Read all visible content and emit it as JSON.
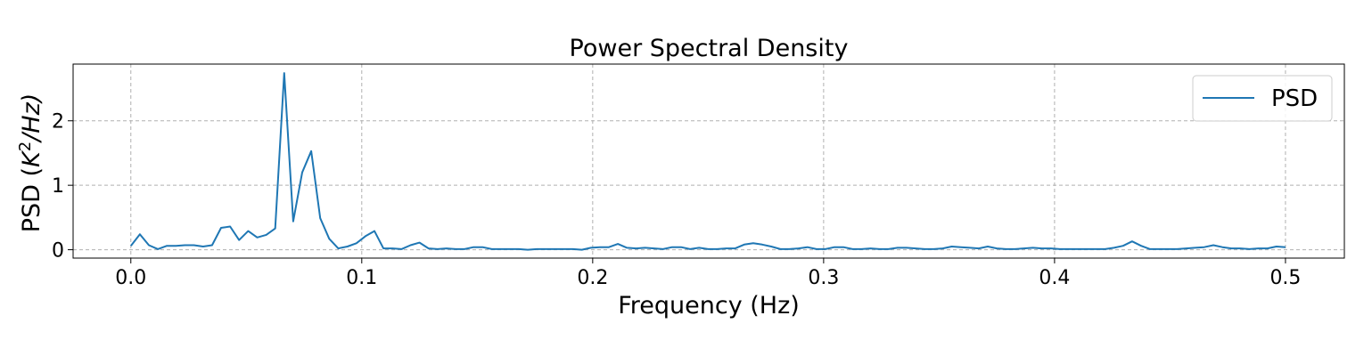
{
  "chart_data": {
    "type": "line",
    "title": "Power Spectral Density",
    "xlabel": "Frequency (Hz)",
    "ylabel": {
      "prefix": "PSD (",
      "base": "K",
      "sup": "2",
      "suffix": "/Hz)"
    },
    "xlim": [
      -0.025,
      0.5255
    ],
    "ylim": [
      -0.13,
      2.88
    ],
    "xticks": [
      0.0,
      0.1,
      0.2,
      0.3,
      0.4,
      0.5
    ],
    "xtick_labels": [
      "0.0",
      "0.1",
      "0.2",
      "0.3",
      "0.4",
      "0.5"
    ],
    "yticks": [
      0,
      1,
      2
    ],
    "ytick_labels": [
      "0",
      "1",
      "2"
    ],
    "grid": true,
    "legend_position": "top-right",
    "series": [
      {
        "name": "PSD",
        "color": "#1f77b4",
        "x": [
          0.0,
          0.0039,
          0.0078,
          0.0117,
          0.0156,
          0.0195,
          0.0234,
          0.0273,
          0.0313,
          0.0352,
          0.0391,
          0.043,
          0.0469,
          0.0508,
          0.0547,
          0.0586,
          0.0625,
          0.0664,
          0.0703,
          0.0742,
          0.0781,
          0.082,
          0.0859,
          0.0898,
          0.0938,
          0.0977,
          0.1016,
          0.1055,
          0.1094,
          0.1133,
          0.1172,
          0.1211,
          0.125,
          0.1289,
          0.1328,
          0.1367,
          0.1406,
          0.1445,
          0.1484,
          0.1523,
          0.1563,
          0.1602,
          0.1641,
          0.168,
          0.1719,
          0.1758,
          0.1797,
          0.1836,
          0.1875,
          0.1914,
          0.1953,
          0.1992,
          0.2031,
          0.207,
          0.2109,
          0.2148,
          0.2188,
          0.2227,
          0.2266,
          0.2305,
          0.2344,
          0.2383,
          0.2422,
          0.2461,
          0.25,
          0.2539,
          0.2578,
          0.2617,
          0.2656,
          0.2695,
          0.2734,
          0.2773,
          0.2813,
          0.2852,
          0.2891,
          0.293,
          0.2969,
          0.3008,
          0.3047,
          0.3086,
          0.3125,
          0.3164,
          0.3203,
          0.3242,
          0.3281,
          0.332,
          0.3359,
          0.3398,
          0.3438,
          0.3477,
          0.3516,
          0.3555,
          0.3594,
          0.3633,
          0.3672,
          0.3711,
          0.375,
          0.3789,
          0.3828,
          0.3867,
          0.3906,
          0.3945,
          0.3984,
          0.4023,
          0.4063,
          0.4102,
          0.4141,
          0.418,
          0.4219,
          0.4258,
          0.4297,
          0.4336,
          0.4375,
          0.4414,
          0.4453,
          0.4492,
          0.4531,
          0.457,
          0.4609,
          0.4648,
          0.4688,
          0.4727,
          0.4766,
          0.4805,
          0.4844,
          0.4883,
          0.4922,
          0.4961,
          0.5
        ],
        "y": [
          0.06,
          0.24,
          0.07,
          0.01,
          0.06,
          0.06,
          0.07,
          0.07,
          0.05,
          0.07,
          0.34,
          0.36,
          0.15,
          0.29,
          0.19,
          0.23,
          0.33,
          2.74,
          0.44,
          1.2,
          1.53,
          0.49,
          0.17,
          0.02,
          0.05,
          0.1,
          0.21,
          0.29,
          0.02,
          0.02,
          0.01,
          0.07,
          0.11,
          0.02,
          0.01,
          0.02,
          0.01,
          0.01,
          0.04,
          0.04,
          0.01,
          0.01,
          0.01,
          0.01,
          0.0,
          0.01,
          0.01,
          0.01,
          0.01,
          0.01,
          0.0,
          0.03,
          0.04,
          0.04,
          0.09,
          0.03,
          0.02,
          0.03,
          0.02,
          0.01,
          0.04,
          0.04,
          0.01,
          0.03,
          0.01,
          0.01,
          0.02,
          0.02,
          0.08,
          0.1,
          0.08,
          0.05,
          0.01,
          0.01,
          0.02,
          0.04,
          0.01,
          0.01,
          0.04,
          0.04,
          0.01,
          0.01,
          0.02,
          0.01,
          0.01,
          0.03,
          0.03,
          0.02,
          0.01,
          0.01,
          0.02,
          0.05,
          0.04,
          0.03,
          0.02,
          0.05,
          0.02,
          0.01,
          0.01,
          0.02,
          0.03,
          0.02,
          0.02,
          0.01,
          0.01,
          0.01,
          0.01,
          0.01,
          0.01,
          0.03,
          0.06,
          0.13,
          0.06,
          0.01,
          0.01,
          0.01,
          0.01,
          0.02,
          0.03,
          0.04,
          0.07,
          0.04,
          0.02,
          0.02,
          0.01,
          0.02,
          0.02,
          0.05,
          0.04
        ]
      }
    ]
  }
}
